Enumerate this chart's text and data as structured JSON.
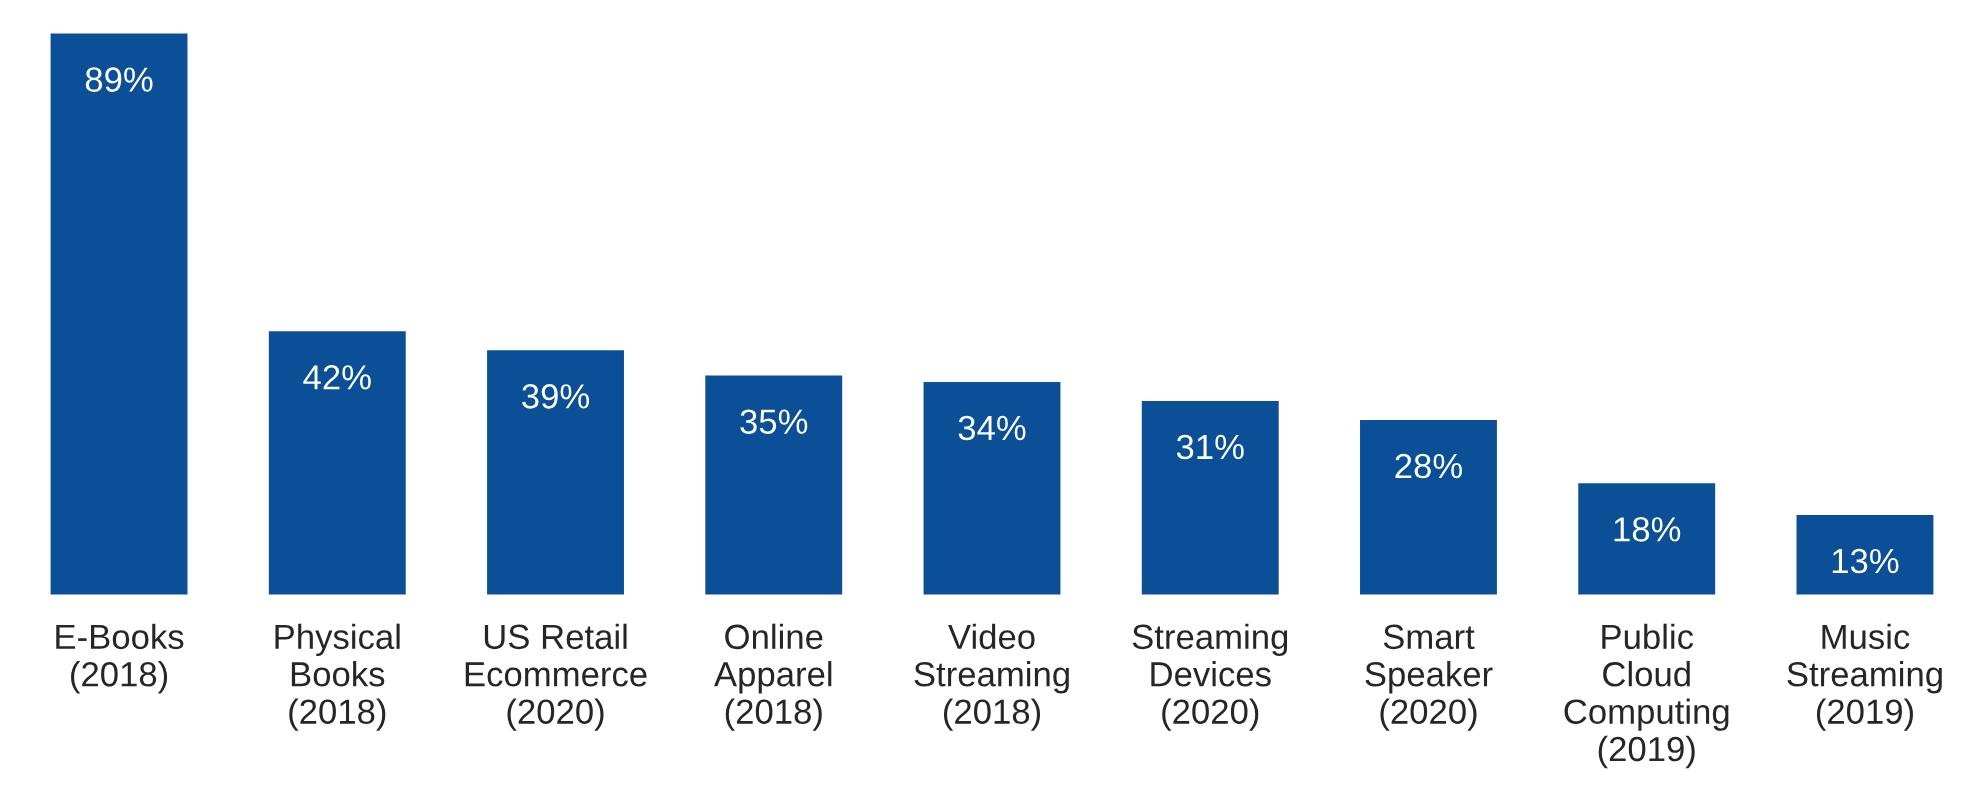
{
  "chart_data": {
    "type": "bar",
    "categories": [
      "E-Books\n(2018)",
      "Physical\nBooks\n(2018)",
      "US Retail\nEcommerce\n(2020)",
      "Online\nApparel\n(2018)",
      "Video\nStreaming\n(2018)",
      "Streaming\nDevices\n(2020)",
      "Smart\nSpeaker\n(2020)",
      "Public\nCloud\nComputing\n(2019)",
      "Music\nStreaming\n(2019)"
    ],
    "values": [
      89,
      42,
      39,
      35,
      34,
      31,
      28,
      18,
      13
    ],
    "value_labels": [
      "89%",
      "42%",
      "39%",
      "35%",
      "34%",
      "31%",
      "28%",
      "18%",
      "13%"
    ],
    "color": "#0b4f96",
    "tick_labels": "x",
    "grid": false
  }
}
